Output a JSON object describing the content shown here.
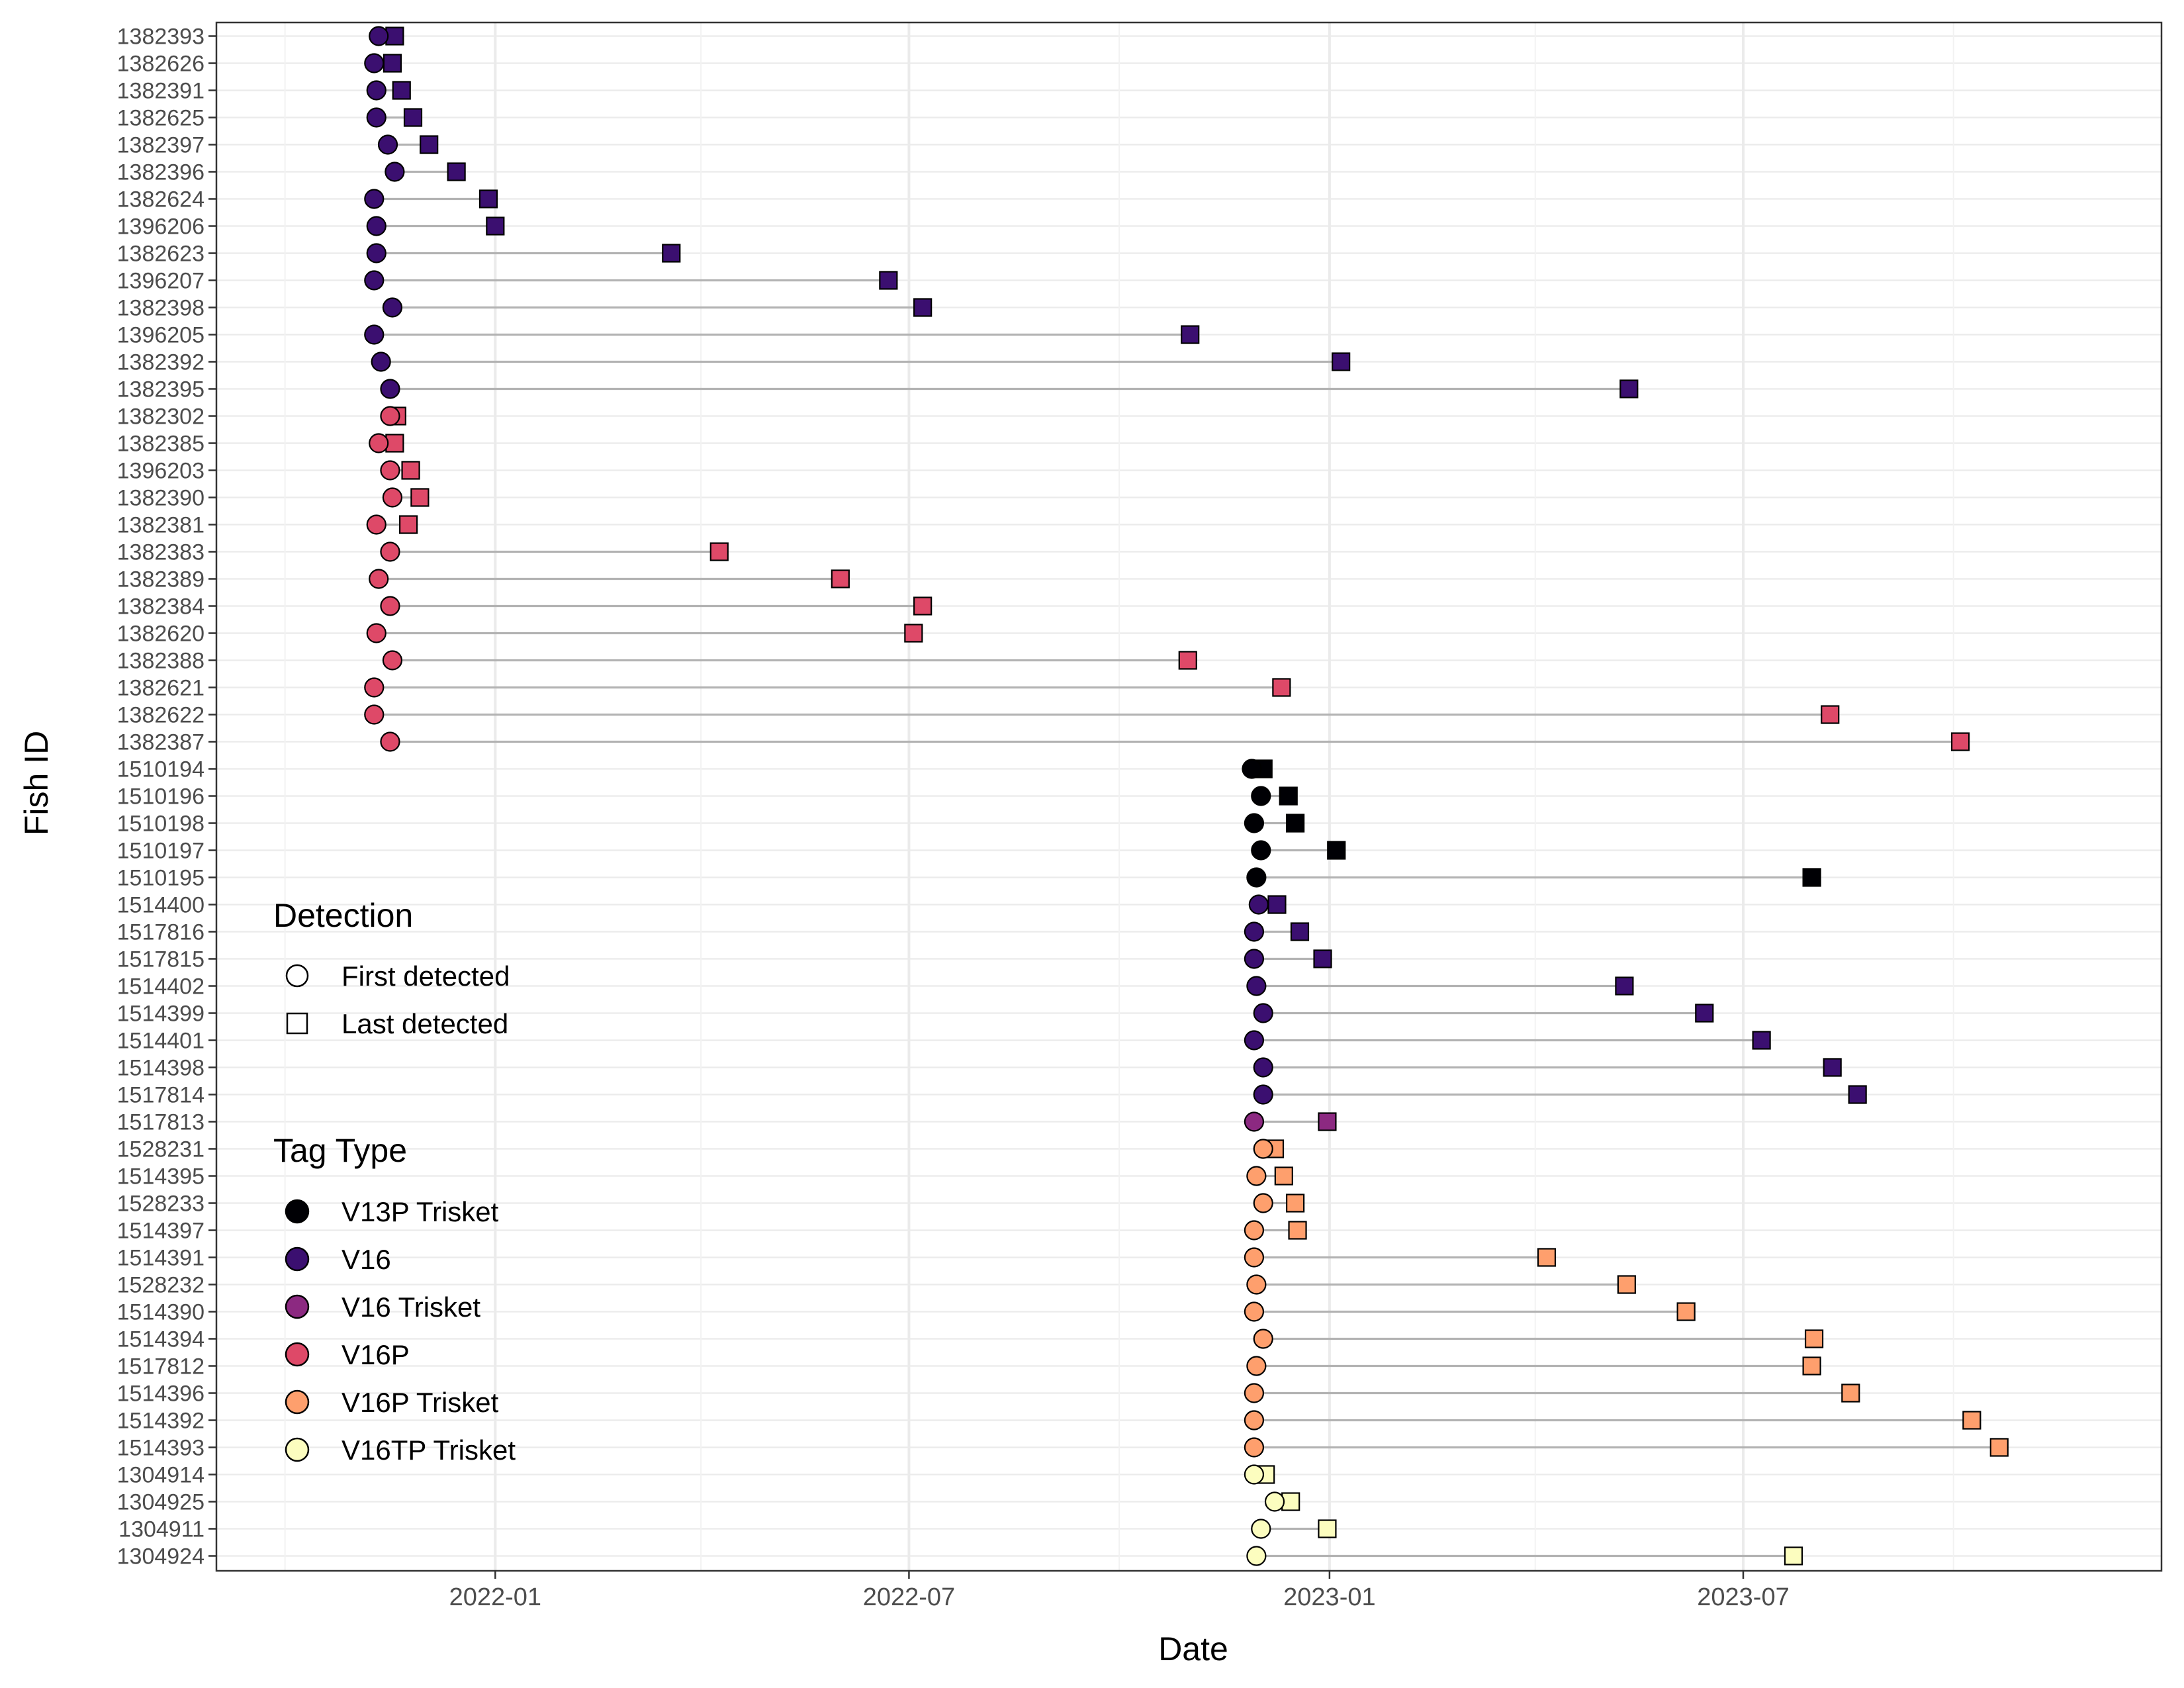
{
  "chart_data": {
    "type": "scatter",
    "xlabel": "Date",
    "ylabel": "Fish ID",
    "x_ticks": [
      "2022-01",
      "2022-07",
      "2023-01",
      "2023-07"
    ],
    "xlim": [
      "2021-09-01",
      "2023-12-31"
    ],
    "grid": true,
    "legends": [
      {
        "title": "Detection",
        "placement": "inside-left",
        "entries": [
          {
            "label": "First detected",
            "shape": "circle"
          },
          {
            "label": "Last detected",
            "shape": "square"
          }
        ]
      },
      {
        "title": "Tag Type",
        "placement": "inside-left",
        "entries": [
          {
            "label": "V13P Trisket",
            "color": "#000004"
          },
          {
            "label": "V16",
            "color": "#3b0f70"
          },
          {
            "label": "V16 Trisket",
            "color": "#8c2981"
          },
          {
            "label": "V16P",
            "color": "#de4968"
          },
          {
            "label": "V16P Trisket",
            "color": "#fe9f6d"
          },
          {
            "label": "V16TP Trisket",
            "color": "#fcfdbf"
          }
        ]
      }
    ],
    "series": [
      {
        "id": "1382393",
        "tag": "V16",
        "first": "2021-11-11",
        "last": "2021-11-18"
      },
      {
        "id": "1382626",
        "tag": "V16",
        "first": "2021-11-09",
        "last": "2021-11-17"
      },
      {
        "id": "1382391",
        "tag": "V16",
        "first": "2021-11-10",
        "last": "2021-11-21"
      },
      {
        "id": "1382625",
        "tag": "V16",
        "first": "2021-11-10",
        "last": "2021-11-26"
      },
      {
        "id": "1382397",
        "tag": "V16",
        "first": "2021-11-15",
        "last": "2021-12-03"
      },
      {
        "id": "1382396",
        "tag": "V16",
        "first": "2021-11-18",
        "last": "2021-12-15"
      },
      {
        "id": "1382624",
        "tag": "V16",
        "first": "2021-11-09",
        "last": "2021-12-29"
      },
      {
        "id": "1396206",
        "tag": "V16",
        "first": "2021-11-10",
        "last": "2022-01-01"
      },
      {
        "id": "1382623",
        "tag": "V16",
        "first": "2021-11-10",
        "last": "2022-03-19"
      },
      {
        "id": "1396207",
        "tag": "V16",
        "first": "2021-11-09",
        "last": "2022-06-22"
      },
      {
        "id": "1382398",
        "tag": "V16",
        "first": "2021-11-17",
        "last": "2022-07-07"
      },
      {
        "id": "1396205",
        "tag": "V16",
        "first": "2021-11-09",
        "last": "2022-11-01"
      },
      {
        "id": "1382392",
        "tag": "V16",
        "first": "2021-11-12",
        "last": "2023-01-06"
      },
      {
        "id": "1382395",
        "tag": "V16",
        "first": "2021-11-16",
        "last": "2023-05-12"
      },
      {
        "id": "1382302",
        "tag": "V16P",
        "first": "2021-11-16",
        "last": "2021-11-19"
      },
      {
        "id": "1382385",
        "tag": "V16P",
        "first": "2021-11-11",
        "last": "2021-11-18"
      },
      {
        "id": "1396203",
        "tag": "V16P",
        "first": "2021-11-16",
        "last": "2021-11-25"
      },
      {
        "id": "1382390",
        "tag": "V16P",
        "first": "2021-11-17",
        "last": "2021-11-29"
      },
      {
        "id": "1382381",
        "tag": "V16P",
        "first": "2021-11-10",
        "last": "2021-11-24"
      },
      {
        "id": "1382383",
        "tag": "V16P",
        "first": "2021-11-16",
        "last": "2022-04-09"
      },
      {
        "id": "1382389",
        "tag": "V16P",
        "first": "2021-11-11",
        "last": "2022-06-01"
      },
      {
        "id": "1382384",
        "tag": "V16P",
        "first": "2021-11-16",
        "last": "2022-07-07"
      },
      {
        "id": "1382620",
        "tag": "V16P",
        "first": "2021-11-10",
        "last": "2022-07-03"
      },
      {
        "id": "1382388",
        "tag": "V16P",
        "first": "2021-11-17",
        "last": "2022-10-31"
      },
      {
        "id": "1382621",
        "tag": "V16P",
        "first": "2021-11-09",
        "last": "2022-12-11"
      },
      {
        "id": "1382622",
        "tag": "V16P",
        "first": "2021-11-09",
        "last": "2023-08-08"
      },
      {
        "id": "1382387",
        "tag": "V16P",
        "first": "2021-11-16",
        "last": "2023-10-04"
      },
      {
        "id": "1510194",
        "tag": "V13P Trisket",
        "first": "2022-11-28",
        "last": "2022-12-03"
      },
      {
        "id": "1510196",
        "tag": "V13P Trisket",
        "first": "2022-12-02",
        "last": "2022-12-14"
      },
      {
        "id": "1510198",
        "tag": "V13P Trisket",
        "first": "2022-11-29",
        "last": "2022-12-17"
      },
      {
        "id": "1510197",
        "tag": "V13P Trisket",
        "first": "2022-12-02",
        "last": "2023-01-04"
      },
      {
        "id": "1510195",
        "tag": "V13P Trisket",
        "first": "2022-11-30",
        "last": "2023-07-31"
      },
      {
        "id": "1514400",
        "tag": "V16",
        "first": "2022-12-01",
        "last": "2022-12-09"
      },
      {
        "id": "1517816",
        "tag": "V16",
        "first": "2022-11-29",
        "last": "2022-12-19"
      },
      {
        "id": "1517815",
        "tag": "V16",
        "first": "2022-11-29",
        "last": "2022-12-29"
      },
      {
        "id": "1514402",
        "tag": "V16",
        "first": "2022-11-30",
        "last": "2023-05-10"
      },
      {
        "id": "1514399",
        "tag": "V16",
        "first": "2022-12-03",
        "last": "2023-06-14"
      },
      {
        "id": "1514401",
        "tag": "V16",
        "first": "2022-11-29",
        "last": "2023-07-09"
      },
      {
        "id": "1514398",
        "tag": "V16",
        "first": "2022-12-03",
        "last": "2023-08-09"
      },
      {
        "id": "1517814",
        "tag": "V16",
        "first": "2022-12-03",
        "last": "2023-08-20"
      },
      {
        "id": "1517813",
        "tag": "V16 Trisket",
        "first": "2022-11-29",
        "last": "2022-12-31"
      },
      {
        "id": "1528231",
        "tag": "V16P Trisket",
        "first": "2022-12-03",
        "last": "2022-12-08"
      },
      {
        "id": "1514395",
        "tag": "V16P Trisket",
        "first": "2022-11-30",
        "last": "2022-12-12"
      },
      {
        "id": "1528233",
        "tag": "V16P Trisket",
        "first": "2022-12-03",
        "last": "2022-12-17"
      },
      {
        "id": "1514397",
        "tag": "V16P Trisket",
        "first": "2022-11-29",
        "last": "2022-12-18"
      },
      {
        "id": "1514391",
        "tag": "V16P Trisket",
        "first": "2022-11-29",
        "last": "2023-04-06"
      },
      {
        "id": "1528232",
        "tag": "V16P Trisket",
        "first": "2022-11-30",
        "last": "2023-05-11"
      },
      {
        "id": "1514390",
        "tag": "V16P Trisket",
        "first": "2022-11-29",
        "last": "2023-06-06"
      },
      {
        "id": "1514394",
        "tag": "V16P Trisket",
        "first": "2022-12-03",
        "last": "2023-08-01"
      },
      {
        "id": "1517812",
        "tag": "V16P Trisket",
        "first": "2022-11-30",
        "last": "2023-07-31"
      },
      {
        "id": "1514396",
        "tag": "V16P Trisket",
        "first": "2022-11-29",
        "last": "2023-08-17"
      },
      {
        "id": "1514392",
        "tag": "V16P Trisket",
        "first": "2022-11-29",
        "last": "2023-10-09"
      },
      {
        "id": "1514393",
        "tag": "V16P Trisket",
        "first": "2022-11-29",
        "last": "2023-10-21"
      },
      {
        "id": "1304914",
        "tag": "V16TP Trisket",
        "first": "2022-11-29",
        "last": "2022-12-04"
      },
      {
        "id": "1304925",
        "tag": "V16TP Trisket",
        "first": "2022-12-08",
        "last": "2022-12-15"
      },
      {
        "id": "1304911",
        "tag": "V16TP Trisket",
        "first": "2022-12-02",
        "last": "2022-12-31"
      },
      {
        "id": "1304924",
        "tag": "V16TP Trisket",
        "first": "2022-11-30",
        "last": "2023-07-23"
      }
    ]
  }
}
